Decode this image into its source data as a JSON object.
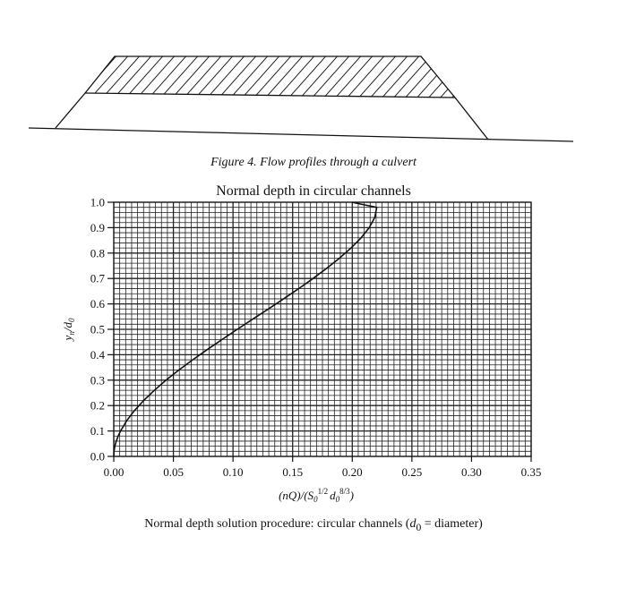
{
  "figure_caption": "Figure 4. Flow profiles through a culvert",
  "bottom_caption": {
    "prefix": "Normal depth solution procedure: circular channels (",
    "d_symbol": "d",
    "d_sub": "0",
    "suffix": " = diameter)"
  },
  "chart_data": {
    "type": "line",
    "title": "Normal depth in circular channels",
    "xlabel": {
      "open": "(nQ)/(S",
      "s_sub": "0",
      "s_sup": "1/2",
      "d": "d",
      "d_sub": "0",
      "d_sup": "8/3",
      "close": ")"
    },
    "ylabel": {
      "y": "y",
      "y_sub": "n",
      "slash": "/d",
      "d_sub": "0"
    },
    "xlim": [
      0,
      0.35
    ],
    "ylim": [
      0,
      1.0
    ],
    "x_ticks": [
      "0.00",
      "0.05",
      "0.10",
      "0.15",
      "0.20",
      "0.25",
      "0.30",
      "0.35"
    ],
    "y_ticks": [
      "0.0",
      "0.1",
      "0.2",
      "0.3",
      "0.4",
      "0.5",
      "0.6",
      "0.7",
      "0.8",
      "0.9",
      "1.0"
    ],
    "grid": true,
    "series": [
      {
        "points": [
          [
            0.0,
            0.0
          ],
          [
            0.0002,
            0.02
          ],
          [
            0.0009,
            0.04
          ],
          [
            0.0021,
            0.06
          ],
          [
            0.0037,
            0.08
          ],
          [
            0.0057,
            0.1
          ],
          [
            0.0108,
            0.14
          ],
          [
            0.0173,
            0.18
          ],
          [
            0.0251,
            0.22
          ],
          [
            0.034,
            0.26
          ],
          [
            0.0439,
            0.3
          ],
          [
            0.0547,
            0.34
          ],
          [
            0.0662,
            0.38
          ],
          [
            0.0783,
            0.42
          ],
          [
            0.0908,
            0.46
          ],
          [
            0.1036,
            0.5
          ],
          [
            0.1166,
            0.54
          ],
          [
            0.1296,
            0.58
          ],
          [
            0.1424,
            0.62
          ],
          [
            0.155,
            0.66
          ],
          [
            0.1671,
            0.7
          ],
          [
            0.1786,
            0.74
          ],
          [
            0.1893,
            0.78
          ],
          [
            0.199,
            0.82
          ],
          [
            0.2074,
            0.86
          ],
          [
            0.2142,
            0.9
          ],
          [
            0.2189,
            0.94
          ],
          [
            0.2205,
            0.98
          ],
          [
            0.1996,
            1.0
          ]
        ]
      }
    ]
  }
}
